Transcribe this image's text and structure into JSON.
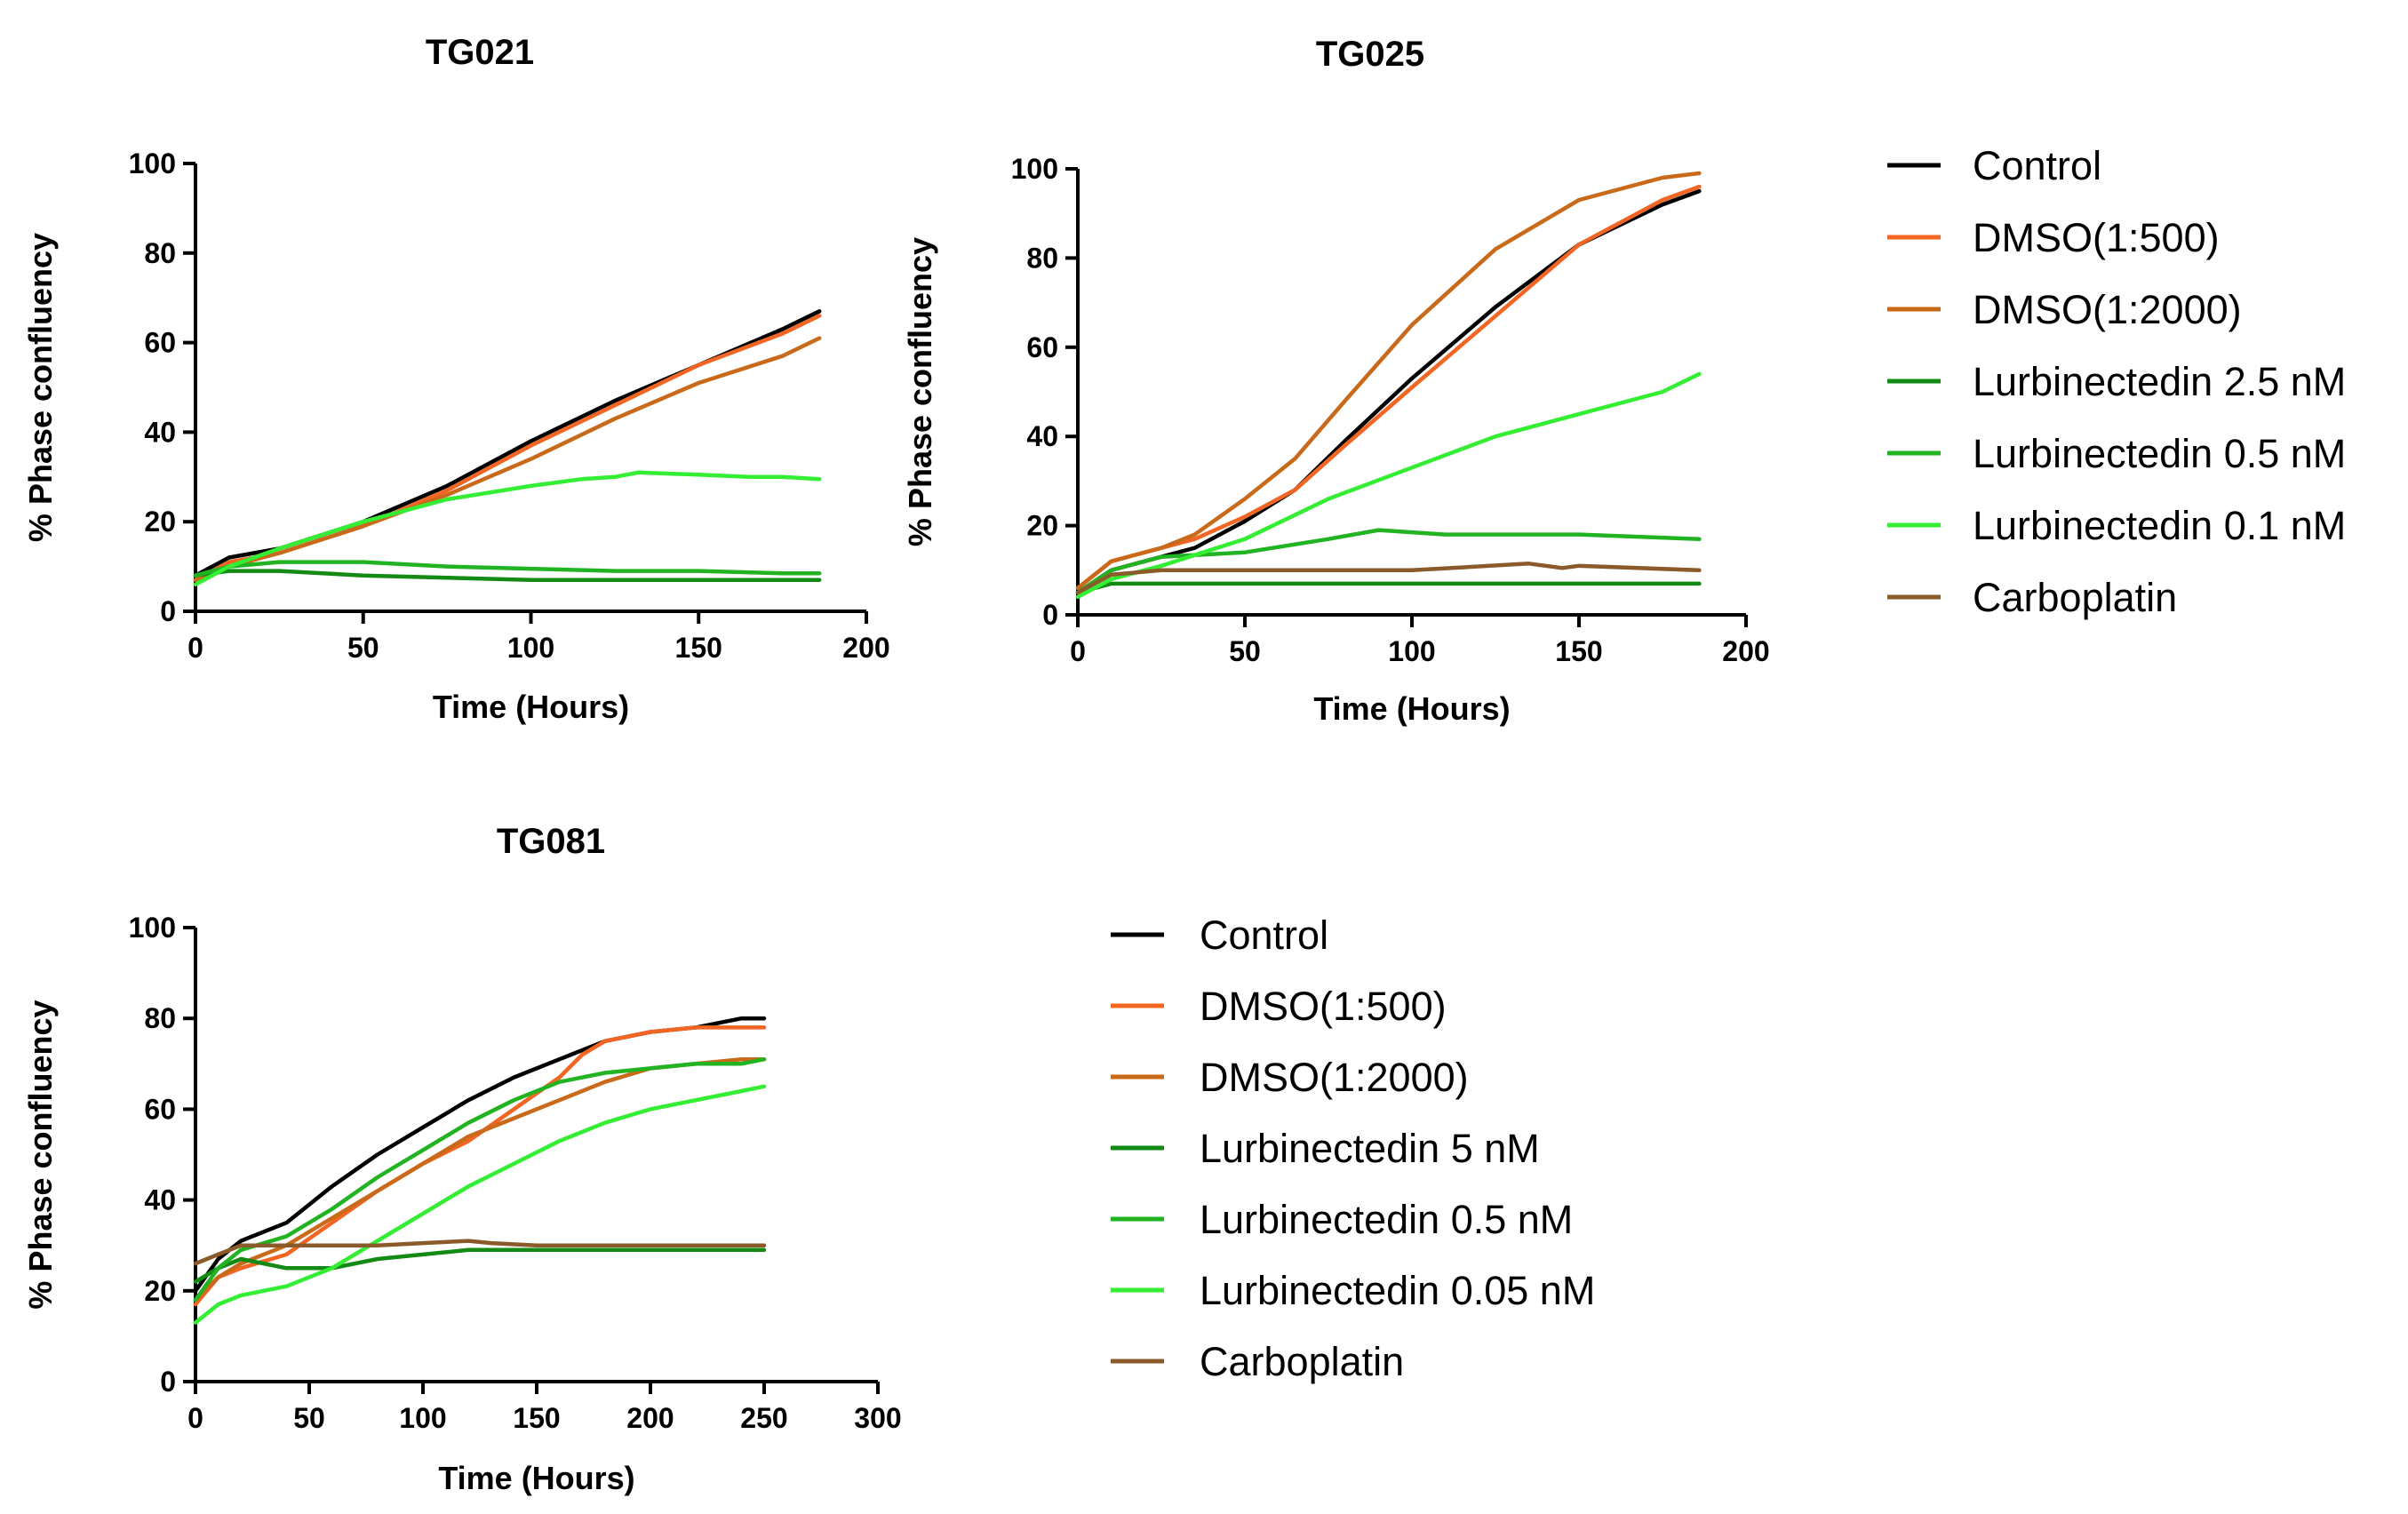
{
  "chart_data": [
    {
      "type": "line",
      "title": "TG021",
      "xlabel": "Time (Hours)",
      "ylabel": "% Phase confluency",
      "xlim": [
        0,
        200
      ],
      "ylim": [
        0,
        100
      ],
      "xticks": [
        0,
        50,
        100,
        150,
        200
      ],
      "yticks": [
        0,
        20,
        40,
        60,
        80,
        100
      ],
      "grid": false,
      "legend": "right",
      "series": [
        {
          "name": "Control",
          "color": "#000000",
          "x": [
            0,
            10,
            25,
            50,
            75,
            100,
            125,
            150,
            175,
            186
          ],
          "y": [
            8,
            12,
            14,
            20,
            28,
            38,
            47,
            55,
            63,
            67
          ]
        },
        {
          "name": "DMSO(1:500)",
          "color": "#f26522",
          "x": [
            0,
            10,
            25,
            50,
            75,
            100,
            125,
            150,
            175,
            186
          ],
          "y": [
            7,
            11,
            13,
            19,
            27,
            37,
            46,
            55,
            62,
            66
          ]
        },
        {
          "name": "DMSO(1:2000)",
          "color": "#c96a1b",
          "x": [
            0,
            10,
            25,
            50,
            75,
            100,
            125,
            150,
            175,
            186
          ],
          "y": [
            7,
            10,
            13,
            19,
            26,
            34,
            43,
            51,
            57,
            61
          ]
        },
        {
          "name": "Lurbinectedin 2.5 nM",
          "color": "#138a13",
          "x": [
            0,
            10,
            25,
            50,
            75,
            100,
            125,
            150,
            175,
            186
          ],
          "y": [
            8,
            9,
            9,
            8,
            7.5,
            7,
            7,
            7,
            7,
            7
          ]
        },
        {
          "name": "Lurbinectedin 0.5 nM",
          "color": "#22b322",
          "x": [
            0,
            10,
            25,
            50,
            75,
            100,
            125,
            150,
            175,
            186
          ],
          "y": [
            8,
            10,
            11,
            11,
            10,
            9.5,
            9,
            9,
            8.5,
            8.5
          ]
        },
        {
          "name": "Lurbinectedin 0.1 nM",
          "color": "#33ee33",
          "x": [
            0,
            10,
            25,
            50,
            75,
            100,
            115,
            125,
            132,
            150,
            165,
            175,
            186
          ],
          "y": [
            6,
            10,
            14,
            20,
            25,
            28,
            29.5,
            30,
            31,
            30.5,
            30,
            30,
            29.5
          ]
        },
        {
          "name": "Carboplatin",
          "color": "#8b5a2b",
          "x": [],
          "y": []
        }
      ]
    },
    {
      "type": "line",
      "title": "TG025",
      "xlabel": "Time (Hours)",
      "ylabel": "% Phase confluency",
      "xlim": [
        0,
        200
      ],
      "ylim": [
        0,
        100
      ],
      "xticks": [
        0,
        50,
        100,
        150,
        200
      ],
      "yticks": [
        0,
        20,
        40,
        60,
        80,
        100
      ],
      "grid": false,
      "legend": "right",
      "series": [
        {
          "name": "Control",
          "color": "#000000",
          "x": [
            0,
            10,
            25,
            35,
            50,
            65,
            80,
            100,
            125,
            150,
            175,
            186
          ],
          "y": [
            5,
            10,
            13,
            15,
            21,
            28,
            39,
            53,
            69,
            83,
            92,
            95
          ]
        },
        {
          "name": "DMSO(1:500)",
          "color": "#f26522",
          "x": [
            0,
            10,
            25,
            35,
            50,
            65,
            80,
            100,
            125,
            150,
            175,
            186
          ],
          "y": [
            6,
            12,
            15,
            17,
            22,
            28,
            38,
            51,
            67,
            83,
            93,
            96
          ]
        },
        {
          "name": "DMSO(1:2000)",
          "color": "#c96a1b",
          "x": [
            0,
            10,
            25,
            35,
            50,
            65,
            80,
            100,
            125,
            150,
            175,
            186
          ],
          "y": [
            6,
            12,
            15,
            18,
            26,
            35,
            48,
            65,
            82,
            93,
            98,
            99
          ]
        },
        {
          "name": "Lurbinectedin 2.5 nM",
          "color": "#138a13",
          "x": [
            0,
            10,
            50,
            100,
            150,
            186
          ],
          "y": [
            5,
            7,
            7,
            7,
            7,
            7
          ]
        },
        {
          "name": "Lurbinectedin 0.5 nM",
          "color": "#22b322",
          "x": [
            0,
            10,
            25,
            50,
            75,
            90,
            110,
            130,
            150,
            186
          ],
          "y": [
            5,
            10,
            13,
            14,
            17,
            19,
            18,
            18,
            18,
            17
          ]
        },
        {
          "name": "Lurbinectedin 0.1 nM",
          "color": "#33ee33",
          "x": [
            0,
            10,
            25,
            50,
            75,
            100,
            125,
            150,
            175,
            186
          ],
          "y": [
            4,
            8,
            11,
            17,
            26,
            33,
            40,
            45,
            50,
            54
          ]
        },
        {
          "name": "Carboplatin",
          "color": "#8b5a2b",
          "x": [
            0,
            10,
            25,
            50,
            100,
            135,
            140,
            145,
            150,
            186
          ],
          "y": [
            5,
            9,
            10,
            10,
            10,
            11.5,
            11,
            10.5,
            11,
            10
          ]
        }
      ]
    },
    {
      "type": "line",
      "title": "TG081",
      "xlabel": "Time (Hours)",
      "ylabel": "% Phase confluency",
      "xlim": [
        0,
        300
      ],
      "ylim": [
        0,
        100
      ],
      "xticks": [
        0,
        50,
        100,
        150,
        200,
        250,
        300
      ],
      "yticks": [
        0,
        20,
        40,
        60,
        80,
        100
      ],
      "grid": false,
      "legend": "right",
      "series": [
        {
          "name": "Control",
          "color": "#000000",
          "x": [
            0,
            10,
            20,
            40,
            60,
            80,
            100,
            120,
            140,
            160,
            180,
            200,
            220,
            240,
            250
          ],
          "y": [
            20,
            27,
            31,
            35,
            43,
            50,
            56,
            62,
            67,
            71,
            75,
            77,
            78,
            80,
            80
          ]
        },
        {
          "name": "DMSO(1:500)",
          "color": "#f26522",
          "x": [
            0,
            10,
            20,
            40,
            60,
            80,
            100,
            120,
            140,
            160,
            170,
            180,
            200,
            220,
            240,
            250
          ],
          "y": [
            17,
            23,
            25,
            28,
            35,
            42,
            48,
            53,
            60,
            67,
            72,
            75,
            77,
            78,
            78,
            78
          ]
        },
        {
          "name": "DMSO(1:2000)",
          "color": "#c96a1b",
          "x": [
            0,
            10,
            20,
            40,
            60,
            80,
            100,
            120,
            140,
            160,
            180,
            200,
            220,
            240,
            250
          ],
          "y": [
            18,
            23,
            26,
            30,
            36,
            42,
            48,
            54,
            58,
            62,
            66,
            69,
            70,
            71,
            71
          ]
        },
        {
          "name": "Lurbinectedin 5 nM",
          "color": "#138a13",
          "x": [
            0,
            10,
            20,
            40,
            60,
            80,
            100,
            120,
            150,
            200,
            250
          ],
          "y": [
            22,
            25,
            27,
            25,
            25,
            27,
            28,
            29,
            29,
            29,
            29
          ]
        },
        {
          "name": "Lurbinectedin 0.5 nM",
          "color": "#22b322",
          "x": [
            0,
            10,
            20,
            40,
            60,
            80,
            100,
            120,
            140,
            160,
            180,
            200,
            220,
            240,
            250
          ],
          "y": [
            18,
            25,
            29,
            32,
            38,
            45,
            51,
            57,
            62,
            66,
            68,
            69,
            70,
            70,
            71
          ]
        },
        {
          "name": "Lurbinectedin 0.05 nM",
          "color": "#33ee33",
          "x": [
            0,
            10,
            20,
            40,
            60,
            80,
            100,
            120,
            140,
            160,
            180,
            200,
            220,
            240,
            250
          ],
          "y": [
            13,
            17,
            19,
            21,
            25,
            31,
            37,
            43,
            48,
            53,
            57,
            60,
            62,
            64,
            65
          ]
        },
        {
          "name": "Carboplatin",
          "color": "#8b5a2b",
          "x": [
            0,
            10,
            20,
            40,
            60,
            80,
            100,
            120,
            130,
            150,
            200,
            250
          ],
          "y": [
            26,
            28,
            30,
            30,
            30,
            30,
            30.5,
            31,
            30.5,
            30,
            30,
            30
          ]
        }
      ]
    }
  ]
}
